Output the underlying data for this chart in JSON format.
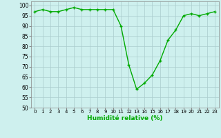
{
  "x": [
    0,
    1,
    2,
    3,
    4,
    5,
    6,
    7,
    8,
    9,
    10,
    11,
    12,
    13,
    14,
    15,
    16,
    17,
    18,
    19,
    20,
    21,
    22,
    23
  ],
  "y": [
    97,
    98,
    97,
    97,
    98,
    99,
    98,
    98,
    98,
    98,
    98,
    90,
    71,
    59,
    62,
    66,
    73,
    83,
    88,
    95,
    96,
    95,
    96,
    97
  ],
  "line_color": "#00aa00",
  "marker": "+",
  "bg_color": "#cef0ee",
  "grid_color": "#aacccc",
  "xlabel": "Humidité relative (%)",
  "xlabel_color": "#00aa00",
  "ylim": [
    50,
    102
  ],
  "xlim": [
    -0.5,
    23.5
  ],
  "yticks": [
    50,
    55,
    60,
    65,
    70,
    75,
    80,
    85,
    90,
    95,
    100
  ],
  "xtick_labels": [
    "0",
    "1",
    "2",
    "3",
    "4",
    "5",
    "6",
    "7",
    "8",
    "9",
    "10",
    "11",
    "12",
    "13",
    "14",
    "15",
    "16",
    "17",
    "18",
    "19",
    "20",
    "21",
    "22",
    "23"
  ]
}
